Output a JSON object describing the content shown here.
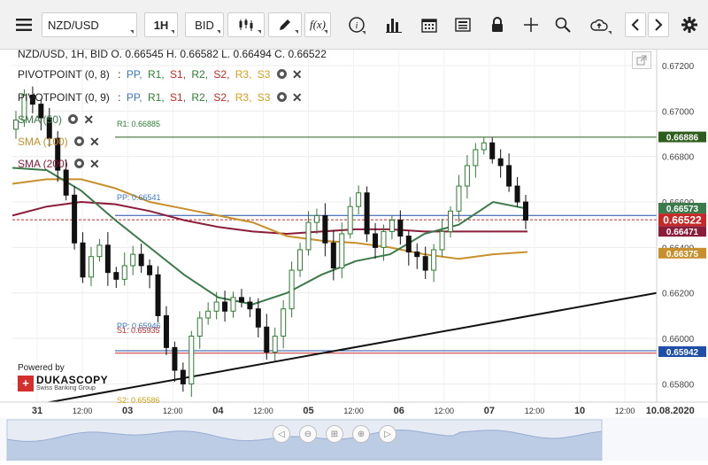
{
  "toolbar": {
    "menu_icon": "hamburger-menu-icon",
    "symbol": "NZD/USD",
    "timeframe": "1H",
    "price_side": "BID",
    "fx_label": "f(x)",
    "info_label": "i"
  },
  "chart_info": {
    "header": "NZD/USD, 1H, BID   O. 0.66545 H. 0.66582 L. 0.66494 C. 0.66522"
  },
  "indicators": [
    {
      "name": "PIVOTPOINT (0, 8)",
      "levels": [
        "PP,",
        "R1,",
        "S1,",
        "R2,",
        "S2,",
        "R3,",
        "S3"
      ],
      "level_colors": [
        "#3a78c3",
        "#2e7d32",
        "#c62828",
        "#2e7d32",
        "#c62828",
        "#d4a017",
        "#d4a017"
      ]
    },
    {
      "name": "PIVOTPOINT (0, 9)",
      "levels": [
        "PP,",
        "R1,",
        "S1,",
        "R2,",
        "S2,",
        "R3,",
        "S3"
      ],
      "level_colors": [
        "#3a78c3",
        "#2e7d32",
        "#c62828",
        "#2e7d32",
        "#c62828",
        "#d4a017",
        "#d4a017"
      ]
    },
    {
      "name": "SMA (50)",
      "color": "#3b7a4a"
    },
    {
      "name": "SMA (100)",
      "color": "#c8902c"
    },
    {
      "name": "SMA (200)",
      "color": "#8b1d3a"
    }
  ],
  "chart_labels": {
    "r1": "R1: 0.66885",
    "pp": "PP: 0.66541",
    "pp2": "PP: 0.65946",
    "s1": "S1: 0.65935",
    "s2": "S2: 0.65586"
  },
  "price_axis": {
    "ticks": [
      "0.67200",
      "0.67000",
      "0.66800",
      "0.66600",
      "0.66400",
      "0.66200",
      "0.66000",
      "0.65800"
    ],
    "badges": [
      {
        "value": "0.66886",
        "color": "#2e5e1e",
        "text_color": "#ffffff"
      },
      {
        "value": "0.66573",
        "color": "#3b7a4a",
        "text_color": "#ffffff"
      },
      {
        "value": "0.66522",
        "color": "#c62828",
        "text_color": "#ffffff"
      },
      {
        "value": "0.66471",
        "color": "#8b1d3a",
        "text_color": "#ffffff"
      },
      {
        "value": "0.66375",
        "color": "#c8902c",
        "text_color": "#ffffff"
      },
      {
        "value": "0.65942",
        "color": "#1f4fa6",
        "text_color": "#ffffff"
      }
    ]
  },
  "time_axis": {
    "labels": [
      "31",
      "12:00",
      "03",
      "12:00",
      "04",
      "12:00",
      "05",
      "12:00",
      "06",
      "12:00",
      "07",
      "12:00",
      "10",
      "12:00",
      "10.08.2020"
    ]
  },
  "branding": {
    "powered_by": "Powered by",
    "brand": "DUKASCOPY",
    "sub": "Swiss Banking Group"
  },
  "chart_data": {
    "type": "candlestick",
    "symbol": "NZD/USD",
    "timeframe": "1H",
    "last_bar": {
      "open": 0.66545,
      "high": 0.66582,
      "low": 0.66494,
      "close": 0.66522
    },
    "ylim": [
      0.6572,
      0.6727
    ],
    "x_categories": [
      "31",
      "12:00",
      "03",
      "12:00",
      "04",
      "12:00",
      "05",
      "12:00",
      "06",
      "12:00",
      "07",
      "12:00"
    ],
    "close_path": [
      0.6696,
      0.6707,
      0.6703,
      0.6697,
      0.6688,
      0.6674,
      0.6663,
      0.6642,
      0.6627,
      0.6636,
      0.6641,
      0.6629,
      0.6626,
      0.6632,
      0.6637,
      0.6632,
      0.6628,
      0.661,
      0.6596,
      0.6586,
      0.658,
      0.6601,
      0.6609,
      0.6612,
      0.6616,
      0.6612,
      0.6618,
      0.6616,
      0.6613,
      0.6605,
      0.6594,
      0.6601,
      0.6613,
      0.663,
      0.6639,
      0.6651,
      0.6654,
      0.6642,
      0.6631,
      0.6646,
      0.6658,
      0.6664,
      0.6646,
      0.664,
      0.6647,
      0.6652,
      0.6645,
      0.6638,
      0.6636,
      0.663,
      0.6639,
      0.6647,
      0.6656,
      0.6667,
      0.6676,
      0.6683,
      0.6686,
      0.6679,
      0.6676,
      0.6667,
      0.666,
      0.6652
    ],
    "sma_50": [
      0.6675,
      0.6674,
      0.6665,
      0.6652,
      0.664,
      0.6628,
      0.6618,
      0.6615,
      0.662,
      0.6628,
      0.6634,
      0.6637,
      0.6646,
      0.665,
      0.666,
      0.6657
    ],
    "sma_100": [
      0.6668,
      0.667,
      0.667,
      0.6666,
      0.666,
      0.6657,
      0.6654,
      0.6651,
      0.6645,
      0.6643,
      0.6642,
      0.664,
      0.6637,
      0.6635,
      0.6637,
      0.6638
    ],
    "sma_200": [
      0.6654,
      0.6658,
      0.666,
      0.6659,
      0.6656,
      0.6652,
      0.6649,
      0.6647,
      0.6646,
      0.6647,
      0.6648,
      0.6648,
      0.6647,
      0.6647,
      0.6647,
      0.6647
    ],
    "horizontal_levels": [
      {
        "label": "R1",
        "value": 0.66885
      },
      {
        "label": "PP",
        "value": 0.66541
      },
      {
        "label": "PP",
        "value": 0.65946
      },
      {
        "label": "S1",
        "value": 0.65935
      },
      {
        "label": "S2",
        "value": 0.65586
      }
    ],
    "trendline": {
      "from": 0.6569,
      "to": 0.662
    }
  }
}
